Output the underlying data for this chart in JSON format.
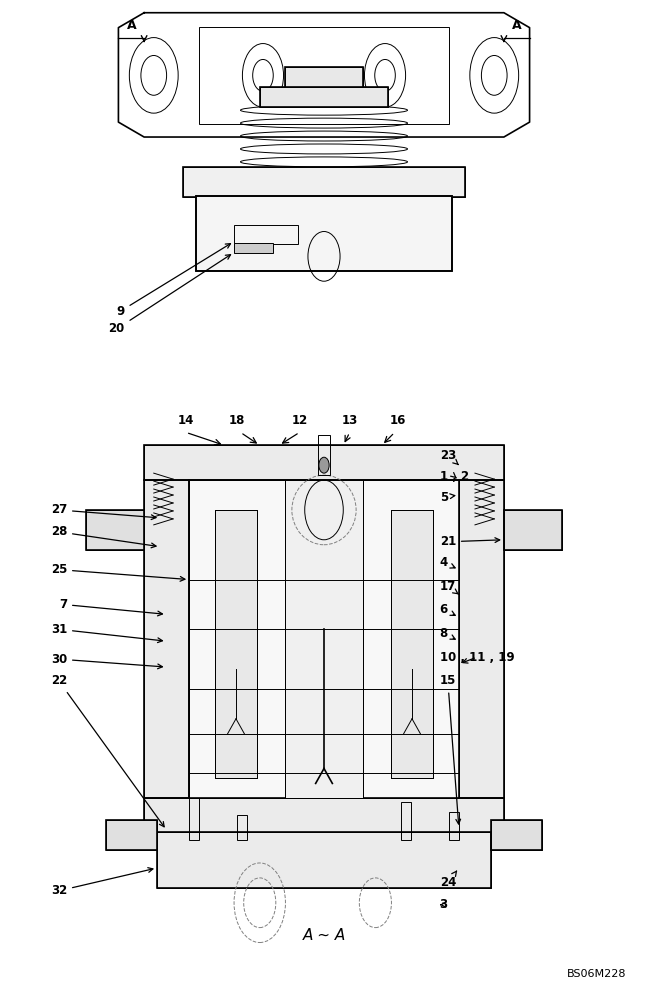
{
  "title": "",
  "subtitle_bottom": "A ~ A",
  "code": "BS06M228",
  "background_color": "#ffffff",
  "line_color": "#000000",
  "figure_width": 6.48,
  "figure_height": 10.0
}
